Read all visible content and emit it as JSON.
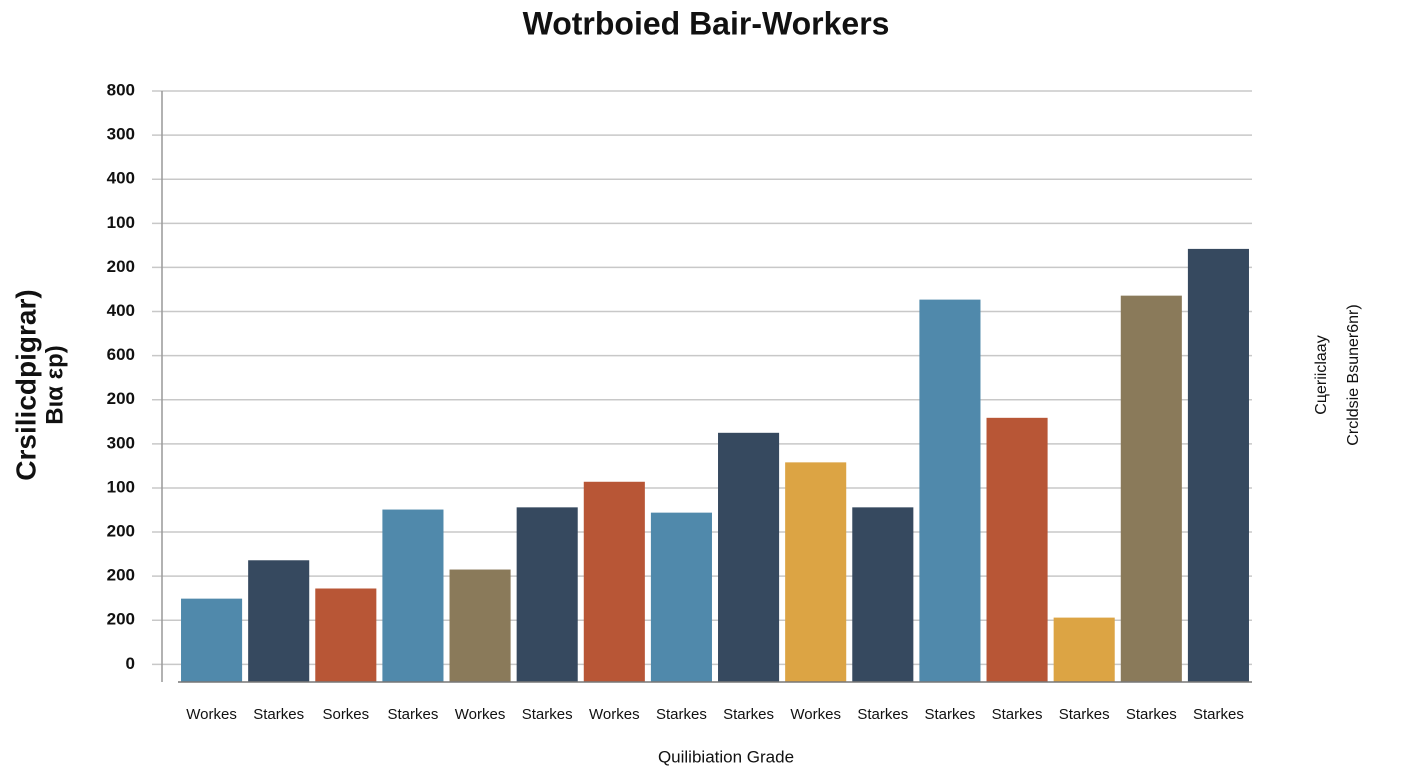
{
  "chart_data": {
    "type": "bar",
    "title": "Wotrboied Bair-Workers",
    "y_label": [
      "Crsilicdpigrar)",
      "Bια εp)"
    ],
    "right_label": [
      "Cцeriiclaay",
      "Crcldsie Bѕuner6nr)"
    ],
    "x_label": "Quilibiation Grade",
    "categories": [
      "Workes",
      "Starkes",
      "Sorkes",
      "Starkes",
      "Workes",
      "Starkes",
      "Workes",
      "Starkes",
      "Starkes",
      "Workes",
      "Starkes",
      "Starkes",
      "Starkes",
      "Starkes",
      "Starkes",
      "Starkes"
    ],
    "values": [
      1.49,
      2.36,
      1.72,
      3.51,
      2.15,
      3.56,
      4.14,
      3.44,
      5.25,
      4.58,
      3.56,
      8.27,
      5.59,
      1.06,
      8.36,
      9.42
    ],
    "colors": [
      "#5089ab",
      "#36495f",
      "#b85636",
      "#5089ab",
      "#8a7a5a",
      "#36495f",
      "#b85636",
      "#5089ab",
      "#36495f",
      "#dca444",
      "#36495f",
      "#5089ab",
      "#b85636",
      "#dca444",
      "#8a7a5a",
      "#36495f"
    ],
    "ylim": [
      -0.4,
      13
    ],
    "yticks": [
      0,
      {
        "value": 1,
        "label": "200"
      },
      {
        "value": 2,
        "label": "200"
      },
      {
        "value": 3,
        "label": "200"
      },
      {
        "value": 4,
        "label": "100"
      },
      {
        "value": 5,
        "label": "300"
      },
      {
        "value": 6,
        "label": "200"
      },
      {
        "value": 7,
        "label": "600"
      },
      {
        "value": 8,
        "label": "400"
      },
      {
        "value": 9,
        "label": "200"
      },
      {
        "value": 10,
        "label": "100"
      },
      {
        "value": 11,
        "label": "400"
      },
      {
        "value": 12,
        "label": "300"
      },
      {
        "value": 13,
        "label": "800"
      }
    ],
    "grid": true
  }
}
